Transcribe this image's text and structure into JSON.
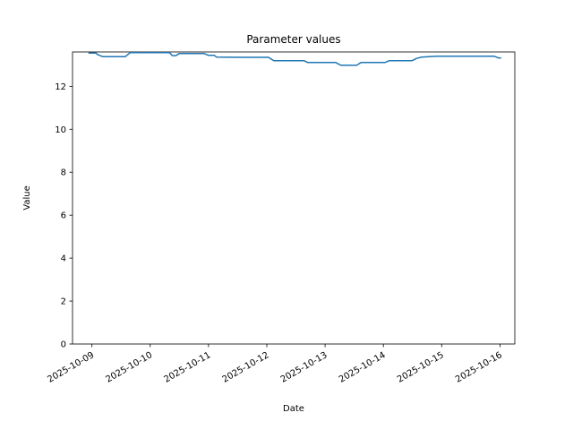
{
  "chart_data": {
    "type": "line",
    "title": "Parameter values",
    "xlabel": "Date",
    "ylabel": "Value",
    "legend": null,
    "grid": false,
    "line_color": "#1f77b4",
    "line_width": 1.5,
    "x_origin_date": "2025-10-09",
    "x_tick_labels": [
      "2025-10-09",
      "2025-10-10",
      "2025-10-11",
      "2025-10-12",
      "2025-10-13",
      "2025-10-14",
      "2025-10-15",
      "2025-10-16"
    ],
    "x_tick_day_offsets": [
      0,
      1,
      2,
      3,
      4,
      5,
      6,
      7
    ],
    "x_tick_rotation_deg": 30,
    "y_ticks": [
      0,
      2,
      4,
      6,
      8,
      10,
      12
    ],
    "xlim_days": [
      -0.333,
      7.255
    ],
    "ylim": [
      0,
      13.6
    ],
    "series": [
      {
        "name": "parameter",
        "x_days": [
          -0.06,
          0.07,
          0.1,
          0.19,
          0.57,
          0.66,
          1.33,
          1.38,
          1.44,
          1.5,
          1.92,
          2.0,
          2.1,
          2.14,
          2.6,
          3.03,
          3.12,
          3.64,
          3.7,
          4.18,
          4.27,
          4.54,
          4.62,
          5.03,
          5.1,
          5.49,
          5.57,
          5.65,
          5.92,
          6.9,
          6.98,
          7.02
        ],
        "values": [
          13.55,
          13.55,
          13.47,
          13.38,
          13.38,
          13.57,
          13.57,
          13.43,
          13.43,
          13.53,
          13.53,
          13.44,
          13.44,
          13.36,
          13.35,
          13.35,
          13.19,
          13.19,
          13.11,
          13.11,
          12.98,
          12.98,
          13.11,
          13.11,
          13.19,
          13.19,
          13.3,
          13.36,
          13.4,
          13.4,
          13.32,
          13.32
        ]
      }
    ]
  }
}
